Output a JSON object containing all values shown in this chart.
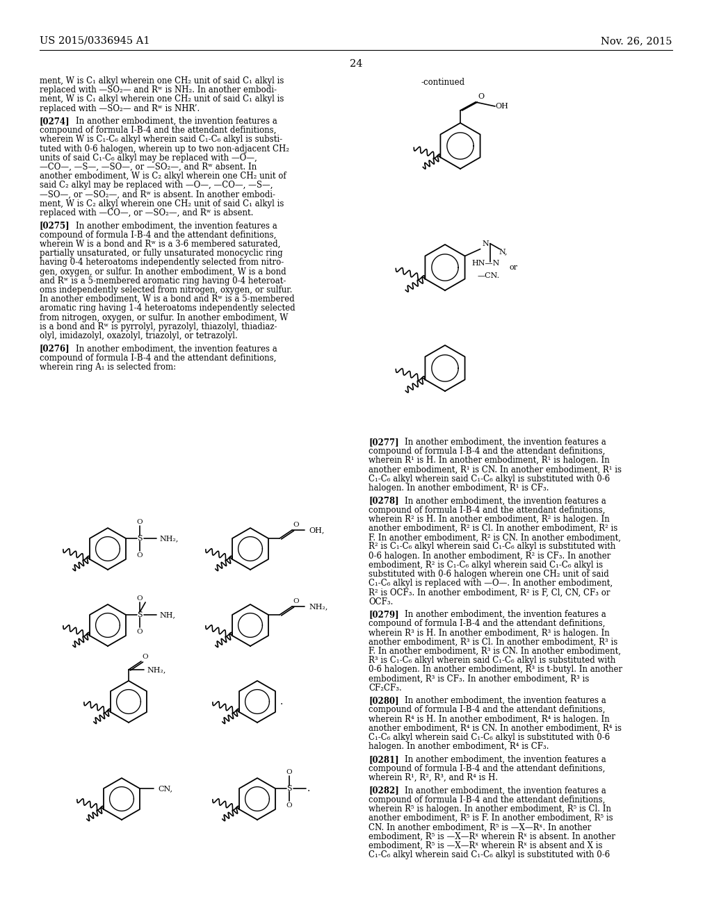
{
  "bg_color": "#ffffff",
  "header_left": "US 2015/0336945 A1",
  "header_right": "Nov. 26, 2015",
  "page_number": "24",
  "body_font_size": 8.5,
  "header_font_size": 10.5
}
